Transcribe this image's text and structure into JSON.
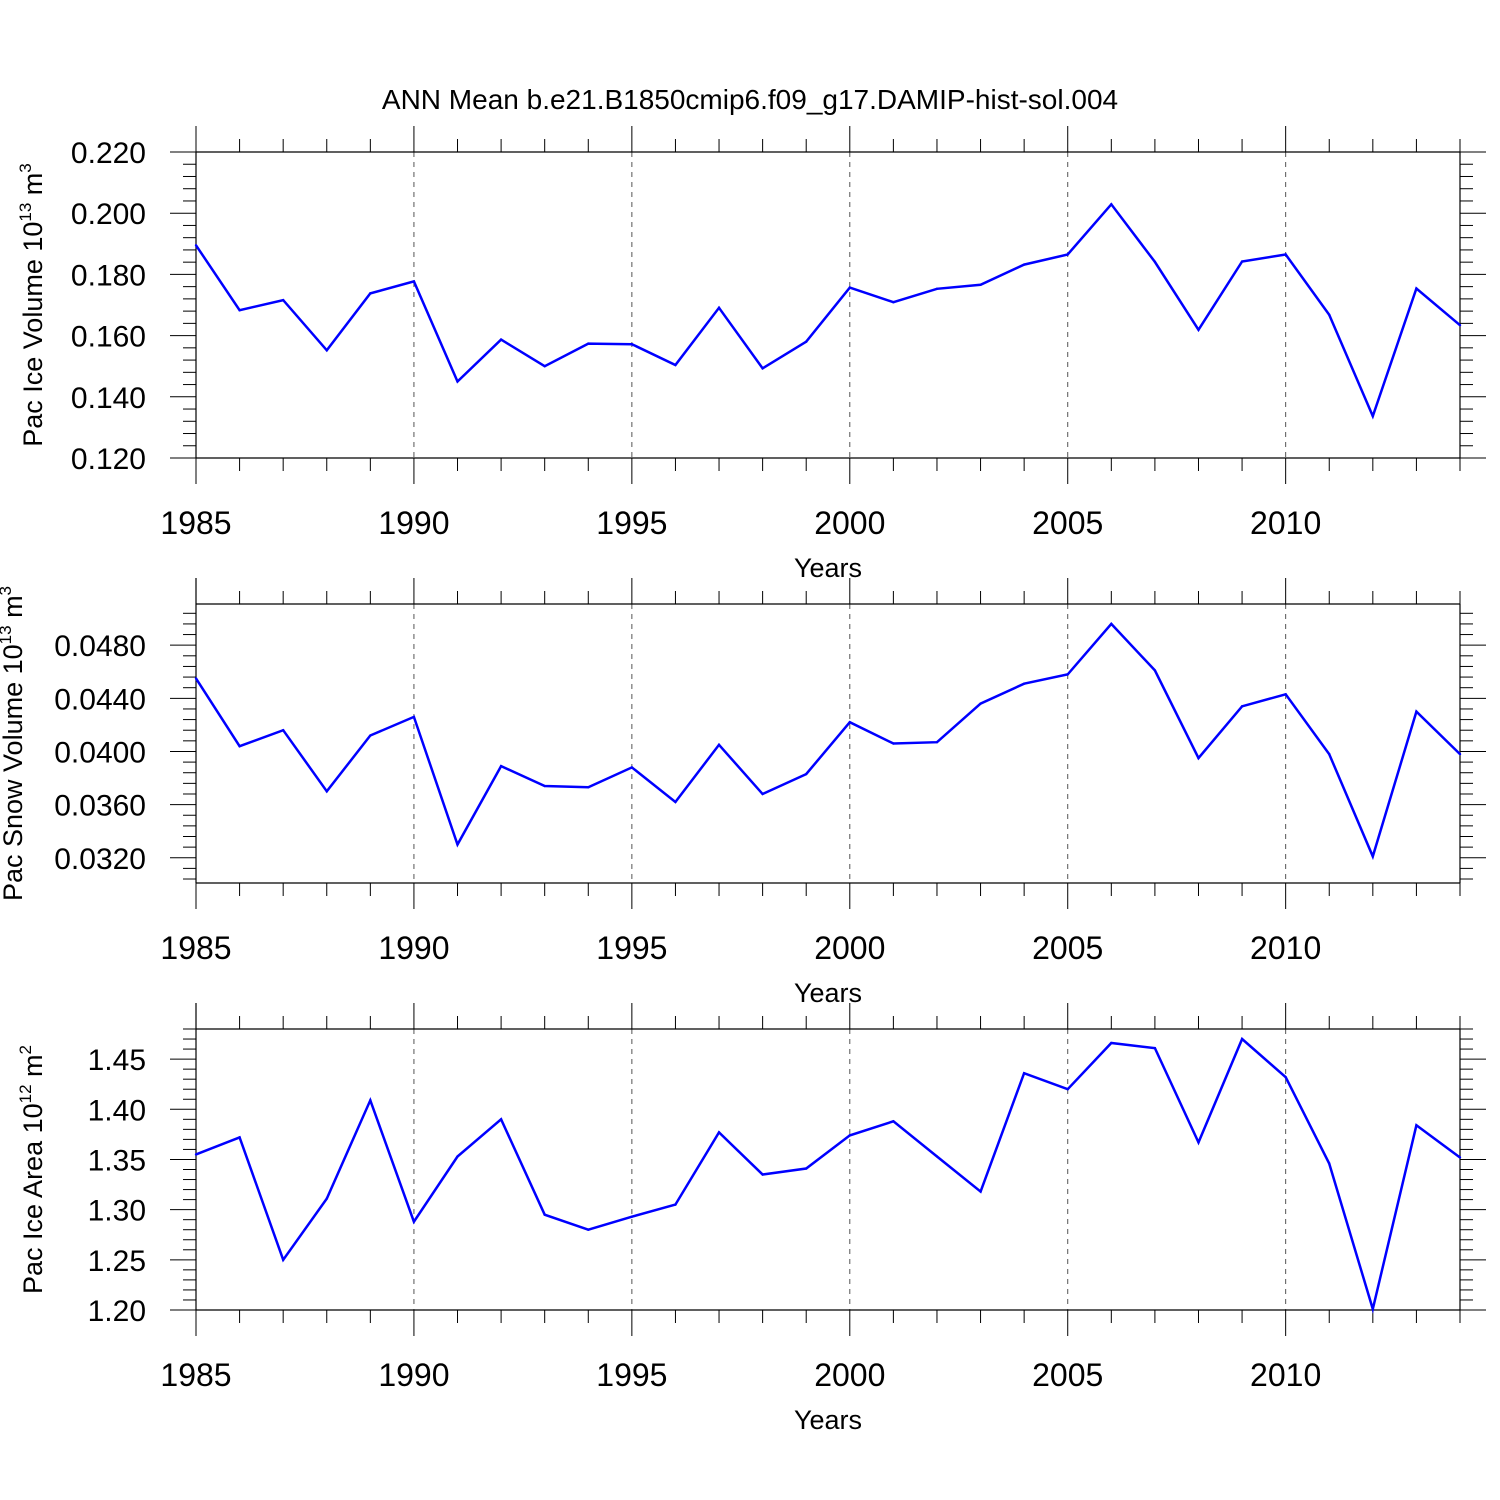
{
  "title": "ANN Mean b.e21.B1850cmip6.f09_g17.DAMIP-hist-sol.004",
  "line_color": "#0000ff",
  "chart_data": [
    {
      "type": "line",
      "ylabel_base": "Pac Ice Volume 10",
      "ylabel_exp": "13",
      "ylabel_unit": " m",
      "ylabel_unit_exp": "3",
      "xlabel": "Years",
      "xlim": [
        1985,
        2014
      ],
      "ylim": [
        0.12,
        0.22
      ],
      "yticks": [
        0.12,
        0.14,
        0.16,
        0.18,
        0.2,
        0.22
      ],
      "ytick_labels": [
        "0.120",
        "0.140",
        "0.160",
        "0.180",
        "0.200",
        "0.220"
      ],
      "xticks": [
        1985,
        1990,
        1995,
        2000,
        2005,
        2010
      ],
      "xtick_labels": [
        "1985",
        "1990",
        "1995",
        "2000",
        "2005",
        "2010"
      ],
      "grid": "vertical dashed at major x ticks",
      "x": [
        1985,
        1986,
        1987,
        1988,
        1989,
        1990,
        1991,
        1992,
        1993,
        1994,
        1995,
        1996,
        1997,
        1998,
        1999,
        2000,
        2001,
        2002,
        2003,
        2004,
        2005,
        2006,
        2007,
        2008,
        2009,
        2010,
        2011,
        2012,
        2013,
        2014
      ],
      "y": [
        0.1895,
        0.1683,
        0.1716,
        0.1552,
        0.1738,
        0.1777,
        0.145,
        0.1587,
        0.15,
        0.1574,
        0.1572,
        0.1504,
        0.1691,
        0.1493,
        0.158,
        0.1757,
        0.1709,
        0.1753,
        0.1766,
        0.1832,
        0.1865,
        0.2029,
        0.1841,
        0.1619,
        0.1842,
        0.1865,
        0.1668,
        0.1337,
        0.1754,
        0.1634
      ]
    },
    {
      "type": "line",
      "ylabel_base": "Pac Snow Volume 10",
      "ylabel_exp": "13",
      "ylabel_unit": " m",
      "ylabel_unit_exp": "3",
      "xlabel": "Years",
      "xlim": [
        1985,
        2014
      ],
      "ylim": [
        0.0301,
        0.0511
      ],
      "yticks": [
        0.032,
        0.036,
        0.04,
        0.044,
        0.048
      ],
      "ytick_labels": [
        "0.0320",
        "0.0360",
        "0.0400",
        "0.0440",
        "0.0480"
      ],
      "xticks": [
        1985,
        1990,
        1995,
        2000,
        2005,
        2010
      ],
      "xtick_labels": [
        "1985",
        "1990",
        "1995",
        "2000",
        "2005",
        "2010"
      ],
      "grid": "vertical dashed at major x ticks",
      "x": [
        1985,
        1986,
        1987,
        1988,
        1989,
        1990,
        1991,
        1992,
        1993,
        1994,
        1995,
        1996,
        1997,
        1998,
        1999,
        2000,
        2001,
        2002,
        2003,
        2004,
        2005,
        2006,
        2007,
        2008,
        2009,
        2010,
        2011,
        2012,
        2013,
        2014
      ],
      "y": [
        0.0455,
        0.0404,
        0.0416,
        0.037,
        0.0412,
        0.0426,
        0.033,
        0.0389,
        0.0374,
        0.0373,
        0.0388,
        0.0362,
        0.0405,
        0.0368,
        0.0383,
        0.0422,
        0.0406,
        0.0407,
        0.0436,
        0.0451,
        0.0458,
        0.0496,
        0.0461,
        0.0395,
        0.0434,
        0.0443,
        0.0398,
        0.0321,
        0.043,
        0.0398
      ]
    },
    {
      "type": "line",
      "ylabel_base": "Pac Ice Area 10",
      "ylabel_exp": "12",
      "ylabel_unit": " m",
      "ylabel_unit_exp": "2",
      "xlabel": "Years",
      "xlim": [
        1985,
        2014
      ],
      "ylim": [
        1.2,
        1.48
      ],
      "yticks": [
        1.2,
        1.25,
        1.3,
        1.35,
        1.4,
        1.45
      ],
      "ytick_labels": [
        "1.20",
        "1.25",
        "1.30",
        "1.35",
        "1.40",
        "1.45"
      ],
      "xticks": [
        1985,
        1990,
        1995,
        2000,
        2005,
        2010
      ],
      "xtick_labels": [
        "1985",
        "1990",
        "1995",
        "2000",
        "2005",
        "2010"
      ],
      "grid": "vertical dashed at major x ticks",
      "x": [
        1985,
        1986,
        1987,
        1988,
        1989,
        1990,
        1991,
        1992,
        1993,
        1994,
        1995,
        1996,
        1997,
        1998,
        1999,
        2000,
        2001,
        2002,
        2003,
        2004,
        2005,
        2006,
        2007,
        2008,
        2009,
        2010,
        2011,
        2012,
        2013,
        2014
      ],
      "y": [
        1.355,
        1.372,
        1.25,
        1.311,
        1.409,
        1.288,
        1.353,
        1.39,
        1.295,
        1.28,
        1.293,
        1.305,
        1.377,
        1.335,
        1.341,
        1.374,
        1.388,
        1.353,
        1.318,
        1.436,
        1.42,
        1.466,
        1.461,
        1.367,
        1.47,
        1.432,
        1.346,
        1.201,
        1.384,
        1.352
      ]
    }
  ]
}
